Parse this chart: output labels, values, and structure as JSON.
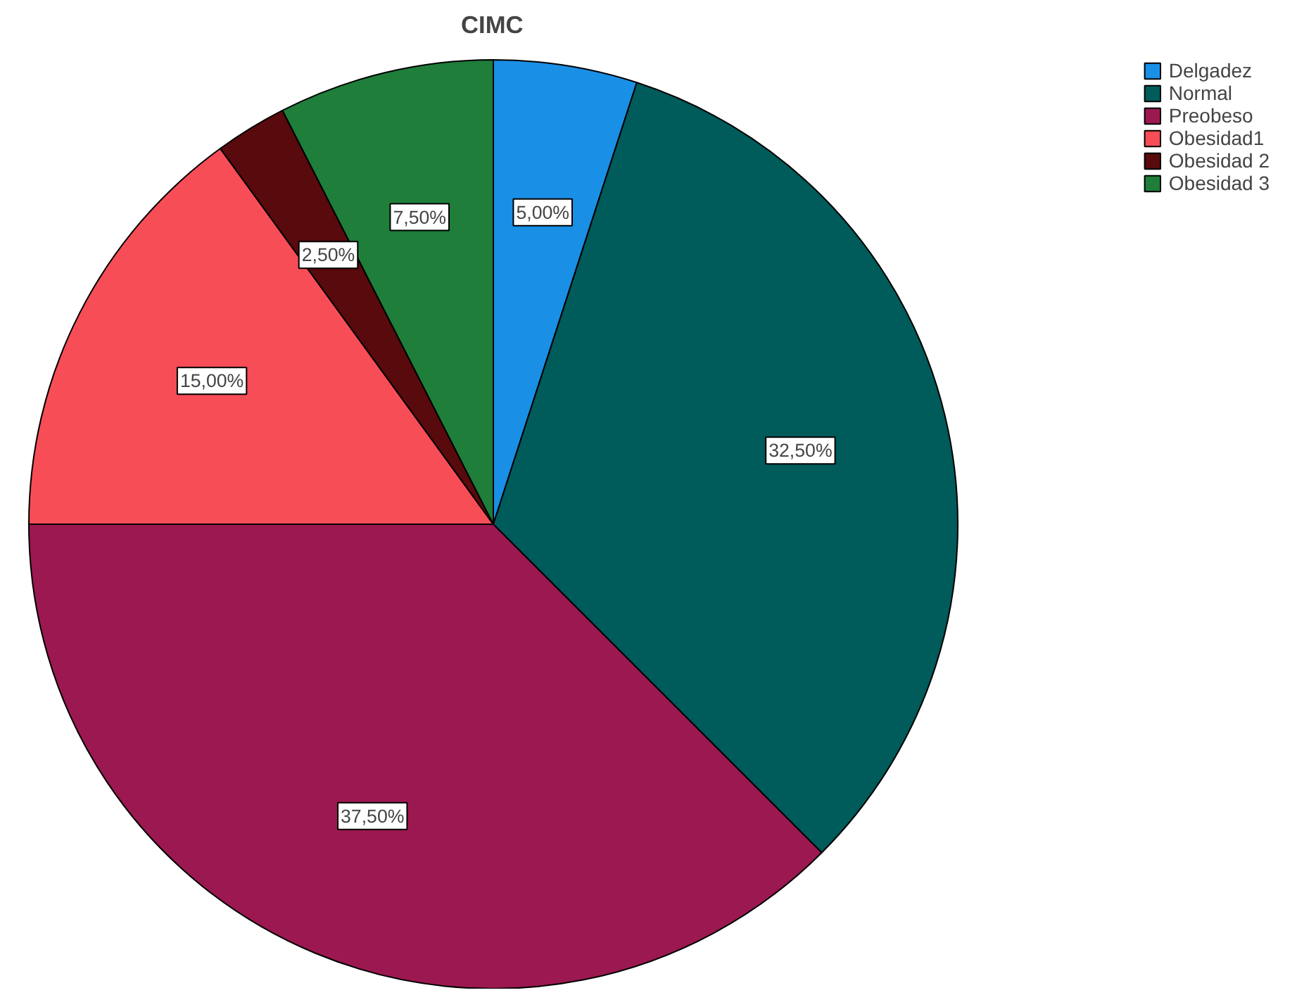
{
  "chart_data": {
    "type": "pie",
    "title": "CIMC",
    "categories": [
      "Delgadez",
      "Normal",
      "Preobeso",
      "Obesidad1",
      "Obesidad 2",
      "Obesidad 3"
    ],
    "values": [
      5,
      32.5,
      37.5,
      15,
      2.5,
      7.5
    ],
    "colors": [
      "#1a8fe6",
      "#005b5b",
      "#9c1850",
      "#f74d57",
      "#580a0c",
      "#1f7e3a"
    ],
    "value_labels": [
      "5,00%",
      "32,50%",
      "37,50%",
      "15,00%",
      "2,50%",
      "7,50%"
    ],
    "legend": "top right"
  }
}
